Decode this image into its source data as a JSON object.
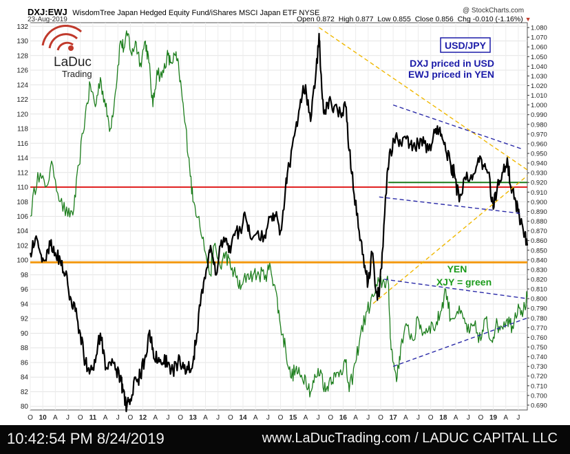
{
  "header": {
    "symbol": "DXJ:EWJ",
    "description": "WisdomTree Japan Hedged Equity Fund/iShares MSCI Japan ETF  NYSE",
    "date": "23-Aug-2019",
    "open": "Open 0.872",
    "high": "High 0.877",
    "low": "Low 0.855",
    "close": "Close 0.856",
    "chg": "Chg -0.010 (-1.16%)",
    "source": "@ StockCharts.com"
  },
  "logo": {
    "brand": "LaDuc",
    "sub": "Trading"
  },
  "colors": {
    "dxj_line": "#000000",
    "xjy_line": "#1b7d1b",
    "red_level": "#e02020",
    "orange_level": "#f39a12",
    "green_level": "#1a7a1a",
    "blue_trend": "#2a2aa8",
    "yellow_trend": "#f0b800",
    "annotation_blue": "#1a1aa8",
    "annotation_green": "#1a9a1a"
  },
  "annotations": {
    "usdjpy_box": "USD/JPY",
    "dxj_note": "DXJ priced in USD",
    "ewj_note": "EWJ priced in YEN",
    "yen_label": "YEN",
    "xjy_label": "XJY = green"
  },
  "footer": {
    "timestamp": "10:42:54 PM 8/24/2019",
    "site": "www.LaDucTrading.com / LADUC CAPITAL LLC"
  },
  "chart_data": {
    "type": "line",
    "left_axis": {
      "ticks": [
        80,
        82,
        84,
        86,
        88,
        90,
        92,
        94,
        96,
        98,
        100,
        102,
        104,
        106,
        108,
        110,
        112,
        114,
        116,
        118,
        120,
        122,
        124,
        126,
        128,
        130,
        132
      ],
      "ylim": [
        79.5,
        132.5
      ]
    },
    "right_axis": {
      "ticks": [
        0.69,
        0.7,
        0.71,
        0.72,
        0.73,
        0.74,
        0.75,
        0.76,
        0.77,
        0.78,
        0.79,
        0.8,
        0.81,
        0.82,
        0.83,
        0.84,
        0.85,
        0.86,
        0.87,
        0.88,
        0.89,
        0.9,
        0.91,
        0.92,
        0.93,
        0.94,
        0.95,
        0.96,
        0.97,
        0.98,
        0.99,
        1.0,
        1.01,
        1.02,
        1.03,
        1.04,
        1.05,
        1.06,
        1.07,
        1.08
      ],
      "ylim": [
        0.685,
        1.085
      ],
      "labels": [
        "0.690",
        "0.700",
        "0.710",
        "0.720",
        "0.730",
        "0.740",
        "0.750",
        "0.760",
        "0.770",
        "0.780",
        "0.790",
        "0.800",
        "0.810",
        "0.820",
        "0.830",
        "0.840",
        "0.850",
        "0.860",
        "0.870",
        "0.880",
        "0.890",
        "0.900",
        "0.910",
        "0.920",
        "0.930",
        "0.940",
        "0.950",
        "0.960",
        "0.970",
        "0.980",
        "0.990",
        "1.000",
        "1.010",
        "1.020",
        "1.030",
        "1.040",
        "1.050",
        "1.060",
        "1.070",
        "1.080"
      ]
    },
    "x_ticks": [
      "O",
      "10",
      "A",
      "J",
      "O",
      "11",
      "A",
      "J",
      "O",
      "12",
      "A",
      "J",
      "O",
      "13",
      "A",
      "J",
      "O",
      "14",
      "A",
      "J",
      "O",
      "15",
      "A",
      "J",
      "O",
      "16",
      "A",
      "J",
      "O",
      "17",
      "A",
      "J",
      "O",
      "18",
      "A",
      "J",
      "O",
      "19",
      "A",
      "J"
    ],
    "x_range": [
      2009.75,
      2019.68
    ],
    "series": [
      {
        "color": "xjy_line",
        "axis": "left",
        "points": [
          [
            2009.75,
            106
          ],
          [
            2009.9,
            112
          ],
          [
            2010.05,
            110
          ],
          [
            2010.2,
            113
          ],
          [
            2010.35,
            108
          ],
          [
            2010.5,
            106
          ],
          [
            2010.62,
            107
          ],
          [
            2010.72,
            113
          ],
          [
            2010.85,
            120
          ],
          [
            2010.95,
            124
          ],
          [
            2011.05,
            121
          ],
          [
            2011.15,
            125
          ],
          [
            2011.25,
            121
          ],
          [
            2011.35,
            118
          ],
          [
            2011.45,
            123
          ],
          [
            2011.55,
            130
          ],
          [
            2011.62,
            129
          ],
          [
            2011.7,
            131
          ],
          [
            2011.78,
            128
          ],
          [
            2011.85,
            130
          ],
          [
            2011.95,
            127
          ],
          [
            2012.05,
            130
          ],
          [
            2012.12,
            127
          ],
          [
            2012.2,
            121
          ],
          [
            2012.28,
            126
          ],
          [
            2012.38,
            125
          ],
          [
            2012.48,
            128
          ],
          [
            2012.55,
            127
          ],
          [
            2012.65,
            128
          ],
          [
            2012.72,
            126
          ],
          [
            2012.82,
            120
          ],
          [
            2012.92,
            114
          ],
          [
            2013.0,
            108
          ],
          [
            2013.12,
            106
          ],
          [
            2013.25,
            101
          ],
          [
            2013.35,
            98
          ],
          [
            2013.42,
            102
          ],
          [
            2013.55,
            99
          ],
          [
            2013.65,
            101
          ],
          [
            2013.75,
            99
          ],
          [
            2013.85,
            98
          ],
          [
            2013.95,
            96
          ],
          [
            2014.08,
            98
          ],
          [
            2014.2,
            98
          ],
          [
            2014.32,
            98
          ],
          [
            2014.45,
            98
          ],
          [
            2014.55,
            99
          ],
          [
            2014.65,
            96
          ],
          [
            2014.75,
            91
          ],
          [
            2014.85,
            88
          ],
          [
            2014.95,
            84
          ],
          [
            2015.05,
            85
          ],
          [
            2015.15,
            84
          ],
          [
            2015.25,
            84
          ],
          [
            2015.35,
            82
          ],
          [
            2015.45,
            84
          ],
          [
            2015.55,
            85
          ],
          [
            2015.65,
            82
          ],
          [
            2015.75,
            84
          ],
          [
            2015.85,
            84
          ],
          [
            2015.95,
            85
          ],
          [
            2016.05,
            86
          ],
          [
            2016.12,
            82
          ],
          [
            2016.25,
            86
          ],
          [
            2016.35,
            90
          ],
          [
            2016.48,
            93
          ],
          [
            2016.6,
            95
          ],
          [
            2016.72,
            97
          ],
          [
            2016.82,
            97
          ],
          [
            2016.9,
            97
          ],
          [
            2016.95,
            89
          ],
          [
            2017.0,
            86
          ],
          [
            2017.08,
            84
          ],
          [
            2017.15,
            88
          ],
          [
            2017.28,
            91
          ],
          [
            2017.4,
            89
          ],
          [
            2017.5,
            92
          ],
          [
            2017.6,
            90
          ],
          [
            2017.72,
            91
          ],
          [
            2017.85,
            91
          ],
          [
            2017.95,
            93
          ],
          [
            2018.05,
            96
          ],
          [
            2018.15,
            92
          ],
          [
            2018.28,
            93
          ],
          [
            2018.4,
            92
          ],
          [
            2018.52,
            90
          ],
          [
            2018.62,
            91
          ],
          [
            2018.75,
            89
          ],
          [
            2018.85,
            92
          ],
          [
            2018.95,
            89
          ],
          [
            2019.05,
            91
          ],
          [
            2019.15,
            91
          ],
          [
            2019.28,
            92
          ],
          [
            2019.38,
            91
          ],
          [
            2019.5,
            94
          ],
          [
            2019.6,
            93
          ],
          [
            2019.68,
            95
          ]
        ]
      },
      {
        "color": "dxj_line",
        "axis": "left",
        "points": [
          [
            2009.75,
            101
          ],
          [
            2009.85,
            103
          ],
          [
            2009.95,
            101
          ],
          [
            2010.05,
            100
          ],
          [
            2010.15,
            102
          ],
          [
            2010.25,
            101
          ],
          [
            2010.35,
            100
          ],
          [
            2010.45,
            98
          ],
          [
            2010.55,
            95
          ],
          [
            2010.65,
            93
          ],
          [
            2010.75,
            90
          ],
          [
            2010.85,
            86
          ],
          [
            2010.95,
            85
          ],
          [
            2011.05,
            86
          ],
          [
            2011.15,
            90
          ],
          [
            2011.25,
            85
          ],
          [
            2011.35,
            86
          ],
          [
            2011.45,
            85
          ],
          [
            2011.55,
            84
          ],
          [
            2011.6,
            82
          ],
          [
            2011.68,
            80
          ],
          [
            2011.75,
            81
          ],
          [
            2011.85,
            84
          ],
          [
            2011.95,
            84
          ],
          [
            2012.05,
            87
          ],
          [
            2012.12,
            90
          ],
          [
            2012.2,
            88
          ],
          [
            2012.3,
            86
          ],
          [
            2012.4,
            86
          ],
          [
            2012.5,
            86
          ],
          [
            2012.6,
            85
          ],
          [
            2012.7,
            86
          ],
          [
            2012.8,
            86
          ],
          [
            2012.9,
            85
          ],
          [
            2013.0,
            86
          ],
          [
            2013.08,
            90
          ],
          [
            2013.18,
            96
          ],
          [
            2013.28,
            99
          ],
          [
            2013.35,
            102
          ],
          [
            2013.45,
            98
          ],
          [
            2013.55,
            102
          ],
          [
            2013.65,
            103
          ],
          [
            2013.75,
            101
          ],
          [
            2013.85,
            104
          ],
          [
            2013.95,
            104
          ],
          [
            2014.05,
            106
          ],
          [
            2014.15,
            103
          ],
          [
            2014.3,
            104
          ],
          [
            2014.45,
            103
          ],
          [
            2014.55,
            106
          ],
          [
            2014.65,
            106
          ],
          [
            2014.75,
            104
          ],
          [
            2014.85,
            110
          ],
          [
            2014.92,
            113
          ],
          [
            2015.05,
            118
          ],
          [
            2015.15,
            122
          ],
          [
            2015.25,
            124
          ],
          [
            2015.35,
            119
          ],
          [
            2015.45,
            125
          ],
          [
            2015.52,
            131
          ],
          [
            2015.55,
            126
          ],
          [
            2015.62,
            120
          ],
          [
            2015.72,
            122
          ],
          [
            2015.82,
            121
          ],
          [
            2015.95,
            120
          ],
          [
            2016.05,
            121
          ],
          [
            2016.12,
            115
          ],
          [
            2016.22,
            109
          ],
          [
            2016.32,
            104
          ],
          [
            2016.42,
            99
          ],
          [
            2016.5,
            97
          ],
          [
            2016.58,
            101
          ],
          [
            2016.65,
            96
          ],
          [
            2016.72,
            95
          ],
          [
            2016.78,
            101
          ],
          [
            2016.88,
            112
          ],
          [
            2016.95,
            115
          ],
          [
            2017.05,
            117
          ],
          [
            2017.15,
            116
          ],
          [
            2017.28,
            117
          ],
          [
            2017.38,
            115
          ],
          [
            2017.5,
            116
          ],
          [
            2017.62,
            116
          ],
          [
            2017.75,
            115
          ],
          [
            2017.85,
            118
          ],
          [
            2017.95,
            117
          ],
          [
            2018.05,
            115
          ],
          [
            2018.15,
            113
          ],
          [
            2018.22,
            112
          ],
          [
            2018.32,
            108
          ],
          [
            2018.45,
            111
          ],
          [
            2018.58,
            111
          ],
          [
            2018.7,
            114
          ],
          [
            2018.8,
            113
          ],
          [
            2018.9,
            112
          ],
          [
            2019.0,
            107
          ],
          [
            2019.08,
            110
          ],
          [
            2019.18,
            112
          ],
          [
            2019.28,
            114
          ],
          [
            2019.35,
            110
          ],
          [
            2019.45,
            108
          ],
          [
            2019.52,
            106
          ],
          [
            2019.6,
            104
          ],
          [
            2019.68,
            102
          ]
        ]
      }
    ],
    "levels": [
      {
        "y": 110,
        "axis": "left",
        "color": "red_level"
      },
      {
        "y": 99.7,
        "axis": "left",
        "color": "orange_level"
      },
      {
        "y": 0.92,
        "axis": "right",
        "color": "green_level",
        "from": 2016.9
      }
    ],
    "trendlines": [
      {
        "color": "yellow_trend",
        "from": [
          2015.52,
          1.08
        ],
        "to": [
          2019.68,
          0.933
        ]
      },
      {
        "color": "yellow_trend",
        "from": [
          2016.6,
          0.795
        ],
        "to": [
          2019.68,
          0.927
        ]
      },
      {
        "color": "blue_trend",
        "from": [
          2017.0,
          1.0
        ],
        "to": [
          2019.55,
          0.955
        ]
      },
      {
        "color": "blue_trend",
        "from": [
          2016.72,
          0.905
        ],
        "to": [
          2019.55,
          0.888
        ]
      },
      {
        "color": "blue_trend",
        "from": [
          2016.82,
          0.82
        ],
        "to": [
          2019.68,
          0.8
        ]
      },
      {
        "color": "blue_trend",
        "from": [
          2017.0,
          0.73
        ],
        "to": [
          2019.68,
          0.78
        ]
      }
    ]
  }
}
